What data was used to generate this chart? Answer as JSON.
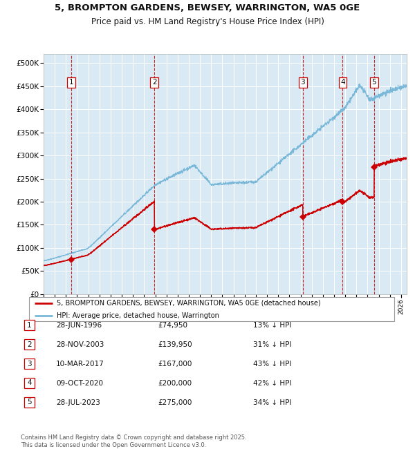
{
  "title_line1": "5, BROMPTON GARDENS, BEWSEY, WARRINGTON, WA5 0GE",
  "title_line2": "Price paid vs. HM Land Registry's House Price Index (HPI)",
  "ylabel_ticks": [
    "£0",
    "£50K",
    "£100K",
    "£150K",
    "£200K",
    "£250K",
    "£300K",
    "£350K",
    "£400K",
    "£450K",
    "£500K"
  ],
  "ytick_values": [
    0,
    50000,
    100000,
    150000,
    200000,
    250000,
    300000,
    350000,
    400000,
    450000,
    500000
  ],
  "ylim": [
    0,
    520000
  ],
  "xlim_start": 1994.0,
  "xlim_end": 2026.5,
  "hpi_color": "#7ab8d9",
  "price_color": "#cc0000",
  "bg_color": "#daeaf5",
  "grid_color": "#ffffff",
  "vline_color": "#cc0000",
  "marker_color": "#cc0000",
  "legend_label_red": "5, BROMPTON GARDENS, BEWSEY, WARRINGTON, WA5 0GE (detached house)",
  "legend_label_blue": "HPI: Average price, detached house, Warrington",
  "transactions": [
    {
      "num": 1,
      "date": "28-JUN-1996",
      "price": 74950,
      "pct": "13%",
      "year": 1996.49
    },
    {
      "num": 2,
      "date": "28-NOV-2003",
      "price": 139950,
      "pct": "31%",
      "year": 2003.91
    },
    {
      "num": 3,
      "date": "10-MAR-2017",
      "price": 167000,
      "pct": "43%",
      "year": 2017.19
    },
    {
      "num": 4,
      "date": "09-OCT-2020",
      "price": 200000,
      "pct": "42%",
      "year": 2020.77
    },
    {
      "num": 5,
      "date": "28-JUL-2023",
      "price": 275000,
      "pct": "34%",
      "year": 2023.58
    }
  ],
  "footnote": "Contains HM Land Registry data © Crown copyright and database right 2025.\nThis data is licensed under the Open Government Licence v3.0.",
  "table_rows": [
    [
      "1",
      "28-JUN-1996",
      "£74,950",
      "13% ↓ HPI"
    ],
    [
      "2",
      "28-NOV-2003",
      "£139,950",
      "31% ↓ HPI"
    ],
    [
      "3",
      "10-MAR-2017",
      "£167,000",
      "43% ↓ HPI"
    ],
    [
      "4",
      "09-OCT-2020",
      "£200,000",
      "42% ↓ HPI"
    ],
    [
      "5",
      "28-JUL-2023",
      "£275,000",
      "34% ↓ HPI"
    ]
  ]
}
